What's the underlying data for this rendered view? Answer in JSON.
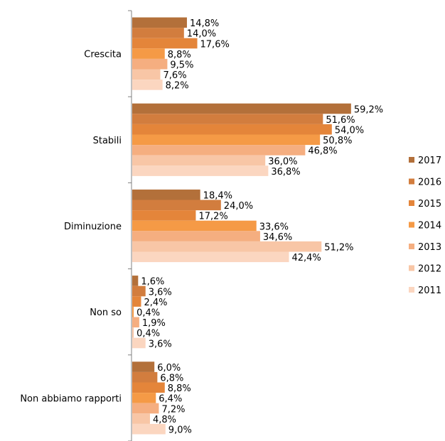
{
  "chart_data": {
    "type": "bar",
    "orientation": "horizontal",
    "categories": [
      "Crescita",
      "Stabili",
      "Diminuzione",
      "Non so",
      "Non abbiamo rapporti"
    ],
    "series": [
      {
        "name": "2017",
        "color": "#B3703A",
        "values": [
          14.8,
          59.2,
          18.4,
          1.6,
          6.0
        ],
        "labels": [
          "14,8%",
          "59,2%",
          "18,4%",
          "1,6%",
          "6,0%"
        ]
      },
      {
        "name": "2016",
        "color": "#D27D3E",
        "values": [
          14.0,
          51.6,
          24.0,
          3.6,
          6.8
        ],
        "labels": [
          "14,0%",
          "51,6%",
          "24,0%",
          "3,6%",
          "6,8%"
        ]
      },
      {
        "name": "2015",
        "color": "#E4853A",
        "values": [
          17.6,
          54.0,
          17.2,
          2.4,
          8.8
        ],
        "labels": [
          "17,6%",
          "54,0%",
          "17,2%",
          "2,4%",
          "8,8%"
        ]
      },
      {
        "name": "2014",
        "color": "#F59A46",
        "values": [
          8.8,
          50.8,
          33.6,
          0.4,
          6.4
        ],
        "labels": [
          "8,8%",
          "50,8%",
          "33,6%",
          "0,4%",
          "6,4%"
        ]
      },
      {
        "name": "2013",
        "color": "#F5AE80",
        "values": [
          9.5,
          46.8,
          34.6,
          1.9,
          7.2
        ],
        "labels": [
          "9,5%",
          "46,8%",
          "34,6%",
          "1,9%",
          "7,2%"
        ]
      },
      {
        "name": "2012",
        "color": "#F8C6A6",
        "values": [
          7.6,
          36.0,
          51.2,
          0.4,
          4.8
        ],
        "labels": [
          "7,6%",
          "36,0%",
          "51,2%",
          "0,4%",
          "4,8%"
        ]
      },
      {
        "name": "2011",
        "color": "#FBD6C0",
        "values": [
          8.2,
          36.8,
          42.4,
          3.6,
          9.0
        ],
        "labels": [
          "8,2%",
          "36,8%",
          "42,4%",
          "3,6%",
          "9,0%"
        ]
      }
    ],
    "xlim": [
      0,
      70
    ],
    "grid": false,
    "legend": "right"
  }
}
